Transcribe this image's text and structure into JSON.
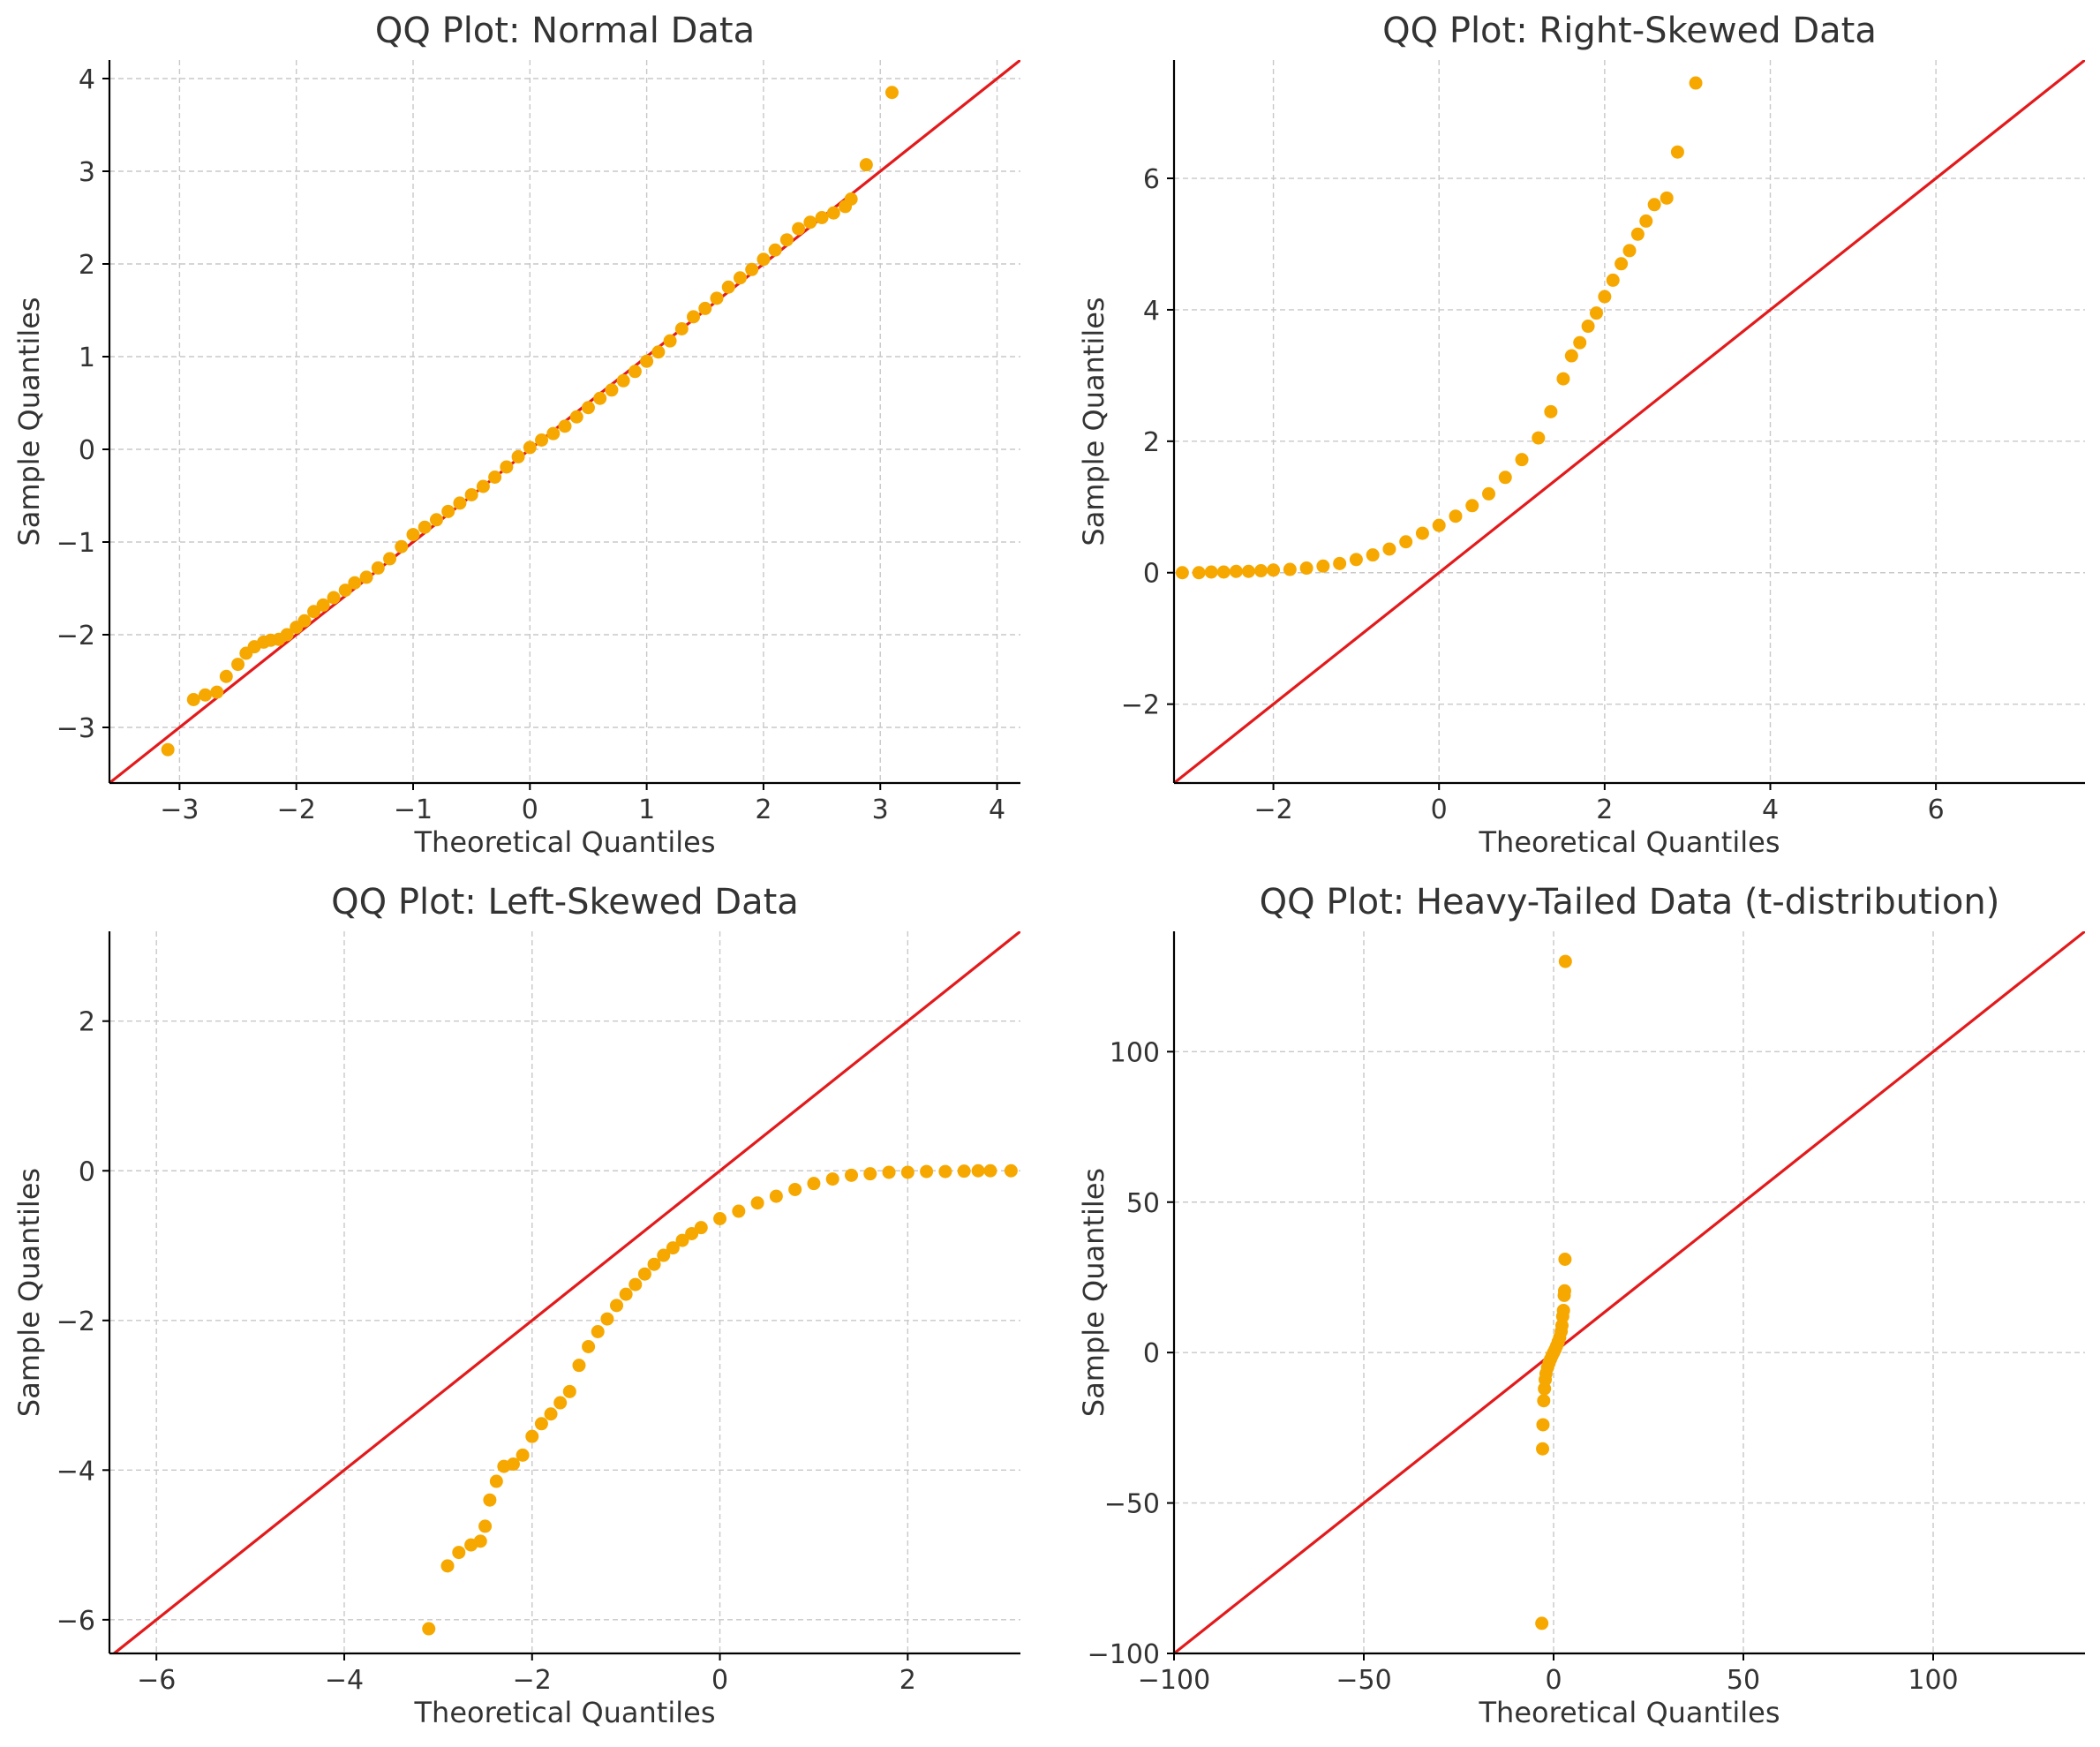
{
  "colors": {
    "points": "#f6a800",
    "reference_line": "#e31a1c"
  },
  "chart_data": [
    {
      "type": "scatter",
      "title": "QQ Plot: Normal Data",
      "xlabel": "Theoretical Quantiles",
      "ylabel": "Sample Quantiles",
      "xlim": [
        -3.6,
        4.2
      ],
      "ylim": [
        -3.6,
        4.2
      ],
      "xticks": [
        -3,
        -2,
        -1,
        0,
        1,
        2,
        3,
        4
      ],
      "yticks": [
        -3,
        -2,
        -1,
        0,
        1,
        2,
        3,
        4
      ],
      "grid": true,
      "reference_line": {
        "slope": 1,
        "intercept": 0
      },
      "points": [
        [
          -3.1,
          -3.24
        ],
        [
          -2.88,
          -2.7
        ],
        [
          -2.78,
          -2.65
        ],
        [
          -2.68,
          -2.62
        ],
        [
          -2.6,
          -2.45
        ],
        [
          -2.5,
          -2.32
        ],
        [
          -2.43,
          -2.2
        ],
        [
          -2.36,
          -2.13
        ],
        [
          -2.28,
          -2.08
        ],
        [
          -2.22,
          -2.06
        ],
        [
          -2.15,
          -2.05
        ],
        [
          -2.08,
          -2.0
        ],
        [
          -2.0,
          -1.92
        ],
        [
          -1.93,
          -1.85
        ],
        [
          -1.85,
          -1.75
        ],
        [
          -1.77,
          -1.68
        ],
        [
          -1.68,
          -1.6
        ],
        [
          -1.58,
          -1.52
        ],
        [
          -1.5,
          -1.44
        ],
        [
          -1.4,
          -1.38
        ],
        [
          -1.3,
          -1.28
        ],
        [
          -1.2,
          -1.18
        ],
        [
          -1.1,
          -1.05
        ],
        [
          -1.0,
          -0.92
        ],
        [
          -0.9,
          -0.84
        ],
        [
          -0.8,
          -0.76
        ],
        [
          -0.7,
          -0.67
        ],
        [
          -0.6,
          -0.58
        ],
        [
          -0.5,
          -0.49
        ],
        [
          -0.4,
          -0.4
        ],
        [
          -0.3,
          -0.3
        ],
        [
          -0.2,
          -0.19
        ],
        [
          -0.1,
          -0.08
        ],
        [
          0.0,
          0.02
        ],
        [
          0.1,
          0.1
        ],
        [
          0.2,
          0.17
        ],
        [
          0.3,
          0.25
        ],
        [
          0.4,
          0.35
        ],
        [
          0.5,
          0.45
        ],
        [
          0.6,
          0.55
        ],
        [
          0.7,
          0.64
        ],
        [
          0.8,
          0.74
        ],
        [
          0.9,
          0.84
        ],
        [
          1.0,
          0.95
        ],
        [
          1.1,
          1.05
        ],
        [
          1.2,
          1.17
        ],
        [
          1.3,
          1.3
        ],
        [
          1.4,
          1.43
        ],
        [
          1.5,
          1.52
        ],
        [
          1.6,
          1.63
        ],
        [
          1.7,
          1.75
        ],
        [
          1.8,
          1.85
        ],
        [
          1.9,
          1.94
        ],
        [
          2.0,
          2.05
        ],
        [
          2.1,
          2.15
        ],
        [
          2.2,
          2.26
        ],
        [
          2.3,
          2.38
        ],
        [
          2.4,
          2.45
        ],
        [
          2.5,
          2.5
        ],
        [
          2.6,
          2.55
        ],
        [
          2.7,
          2.62
        ],
        [
          2.75,
          2.7
        ],
        [
          2.88,
          3.07
        ],
        [
          3.1,
          3.85
        ]
      ]
    },
    {
      "type": "scatter",
      "title": "QQ Plot: Right-Skewed Data",
      "xlabel": "Theoretical Quantiles",
      "ylabel": "Sample Quantiles",
      "xlim": [
        -3.2,
        7.8
      ],
      "ylim": [
        -3.2,
        7.8
      ],
      "xticks": [
        -2,
        0,
        2,
        4,
        6
      ],
      "yticks": [
        -2,
        0,
        2,
        4,
        6
      ],
      "grid": true,
      "reference_line": {
        "slope": 1,
        "intercept": 0
      },
      "points": [
        [
          -3.1,
          0.0
        ],
        [
          -2.9,
          0.0
        ],
        [
          -2.75,
          0.01
        ],
        [
          -2.6,
          0.01
        ],
        [
          -2.45,
          0.02
        ],
        [
          -2.3,
          0.02
        ],
        [
          -2.15,
          0.03
        ],
        [
          -2.0,
          0.04
        ],
        [
          -1.8,
          0.05
        ],
        [
          -1.6,
          0.07
        ],
        [
          -1.4,
          0.1
        ],
        [
          -1.2,
          0.14
        ],
        [
          -1.0,
          0.2
        ],
        [
          -0.8,
          0.27
        ],
        [
          -0.6,
          0.36
        ],
        [
          -0.4,
          0.47
        ],
        [
          -0.2,
          0.6
        ],
        [
          0.0,
          0.72
        ],
        [
          0.2,
          0.86
        ],
        [
          0.4,
          1.02
        ],
        [
          0.6,
          1.2
        ],
        [
          0.8,
          1.45
        ],
        [
          1.0,
          1.72
        ],
        [
          1.2,
          2.05
        ],
        [
          1.35,
          2.45
        ],
        [
          1.5,
          2.95
        ],
        [
          1.6,
          3.3
        ],
        [
          1.7,
          3.5
        ],
        [
          1.8,
          3.75
        ],
        [
          1.9,
          3.95
        ],
        [
          2.0,
          4.2
        ],
        [
          2.1,
          4.45
        ],
        [
          2.2,
          4.7
        ],
        [
          2.3,
          4.9
        ],
        [
          2.4,
          5.15
        ],
        [
          2.5,
          5.35
        ],
        [
          2.6,
          5.6
        ],
        [
          2.75,
          5.7
        ],
        [
          2.88,
          6.4
        ],
        [
          3.1,
          7.45
        ]
      ]
    },
    {
      "type": "scatter",
      "title": "QQ Plot: Left-Skewed Data",
      "xlabel": "Theoretical Quantiles",
      "ylabel": "Sample Quantiles",
      "xlim": [
        -6.5,
        3.2
      ],
      "ylim": [
        -6.45,
        3.2
      ],
      "xticks": [
        -6,
        -4,
        -2,
        0,
        2
      ],
      "yticks": [
        -6,
        -4,
        -2,
        0,
        2
      ],
      "grid": true,
      "reference_line": {
        "slope": 1,
        "intercept": 0
      },
      "points": [
        [
          -3.1,
          -6.12
        ],
        [
          -2.9,
          -5.28
        ],
        [
          -2.78,
          -5.1
        ],
        [
          -2.65,
          -5.0
        ],
        [
          -2.55,
          -4.95
        ],
        [
          -2.5,
          -4.75
        ],
        [
          -2.45,
          -4.4
        ],
        [
          -2.38,
          -4.15
        ],
        [
          -2.3,
          -3.95
        ],
        [
          -2.2,
          -3.92
        ],
        [
          -2.1,
          -3.8
        ],
        [
          -2.0,
          -3.55
        ],
        [
          -1.9,
          -3.38
        ],
        [
          -1.8,
          -3.25
        ],
        [
          -1.7,
          -3.1
        ],
        [
          -1.6,
          -2.95
        ],
        [
          -1.5,
          -2.6
        ],
        [
          -1.4,
          -2.35
        ],
        [
          -1.3,
          -2.15
        ],
        [
          -1.2,
          -1.98
        ],
        [
          -1.1,
          -1.8
        ],
        [
          -1.0,
          -1.65
        ],
        [
          -0.9,
          -1.52
        ],
        [
          -0.8,
          -1.38
        ],
        [
          -0.7,
          -1.25
        ],
        [
          -0.6,
          -1.13
        ],
        [
          -0.5,
          -1.03
        ],
        [
          -0.4,
          -0.93
        ],
        [
          -0.3,
          -0.84
        ],
        [
          -0.2,
          -0.76
        ],
        [
          0.0,
          -0.64
        ],
        [
          0.2,
          -0.54
        ],
        [
          0.4,
          -0.43
        ],
        [
          0.6,
          -0.34
        ],
        [
          0.8,
          -0.25
        ],
        [
          1.0,
          -0.17
        ],
        [
          1.2,
          -0.11
        ],
        [
          1.4,
          -0.06
        ],
        [
          1.6,
          -0.04
        ],
        [
          1.8,
          -0.02
        ],
        [
          2.0,
          -0.02
        ],
        [
          2.2,
          -0.01
        ],
        [
          2.4,
          -0.01
        ],
        [
          2.6,
          -0.005
        ],
        [
          2.75,
          0.0
        ],
        [
          2.88,
          0.0
        ],
        [
          3.1,
          0.0
        ]
      ]
    },
    {
      "type": "scatter",
      "title": "QQ Plot: Heavy-Tailed Data (t-distribution)",
      "xlabel": "Theoretical Quantiles",
      "ylabel": "Sample Quantiles",
      "xlim": [
        -100,
        140
      ],
      "ylim": [
        -100,
        140
      ],
      "xticks": [
        -100,
        -50,
        0,
        50,
        100
      ],
      "yticks": [
        -100,
        -50,
        0,
        50,
        100
      ],
      "grid": true,
      "reference_line": {
        "slope": 1,
        "intercept": 0
      },
      "points": [
        [
          -3.1,
          -90.0
        ],
        [
          -2.9,
          -32.0
        ],
        [
          -2.8,
          -24.0
        ],
        [
          -2.6,
          -16.0
        ],
        [
          -2.4,
          -12.0
        ],
        [
          -2.2,
          -9.0
        ],
        [
          -2.0,
          -7.0
        ],
        [
          -1.6,
          -5.0
        ],
        [
          -1.2,
          -3.5
        ],
        [
          -0.8,
          -2.2
        ],
        [
          -0.4,
          -1.0
        ],
        [
          0.0,
          0.0
        ],
        [
          0.4,
          1.0
        ],
        [
          0.8,
          2.2
        ],
        [
          1.2,
          3.5
        ],
        [
          1.6,
          5.0
        ],
        [
          2.0,
          7.0
        ],
        [
          2.2,
          9.0
        ],
        [
          2.4,
          12.0
        ],
        [
          2.6,
          14.0
        ],
        [
          2.8,
          19.0
        ],
        [
          2.9,
          20.5
        ],
        [
          3.0,
          31.0
        ],
        [
          3.1,
          130.0
        ]
      ]
    }
  ]
}
